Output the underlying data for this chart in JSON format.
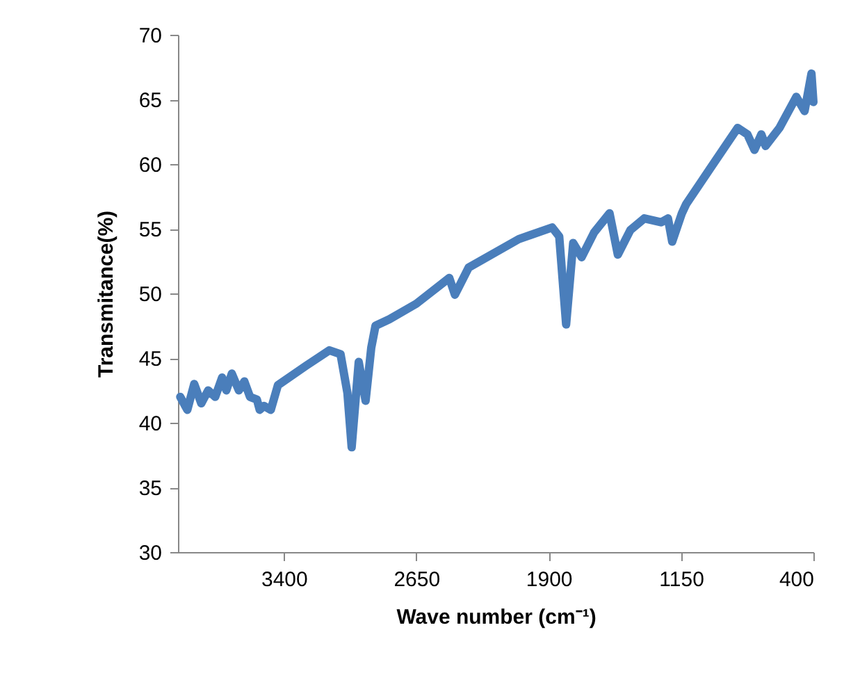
{
  "chart_data": {
    "type": "line",
    "xlabel": "Wave number (cm⁻¹)",
    "ylabel": "Transmitance(%)",
    "xlim": [
      4000,
      400
    ],
    "xticks": [
      3400,
      2650,
      1900,
      1150,
      400
    ],
    "ylim": [
      30,
      70
    ],
    "yticks": [
      30,
      35,
      40,
      45,
      50,
      55,
      60,
      65,
      70
    ],
    "grid": false,
    "marker": "none",
    "line_style": "solid",
    "series": [
      {
        "color": "#4a7ebb",
        "x": [
          3987,
          3947,
          3908,
          3868,
          3829,
          3789,
          3750,
          3726,
          3695,
          3655,
          3624,
          3592,
          3553,
          3537,
          3513,
          3474,
          3434,
          3275,
          3142,
          3079,
          3040,
          3016,
          2976,
          2937,
          2905,
          2881,
          2803,
          2650,
          2463,
          2431,
          2353,
          2069,
          1880,
          1840,
          1801,
          1761,
          1713,
          1643,
          1555,
          1508,
          1437,
          1358,
          1263,
          1224,
          1200,
          1145,
          1121,
          963,
          829,
          774,
          734,
          695,
          671,
          592,
          497,
          450,
          411,
          400
        ],
        "values": [
          42.0,
          41.0,
          43.0,
          41.5,
          42.5,
          42.0,
          43.5,
          42.5,
          43.8,
          42.5,
          43.2,
          42.0,
          41.8,
          41.0,
          41.3,
          41.0,
          42.9,
          44.4,
          45.6,
          45.3,
          42.3,
          38.1,
          44.7,
          41.7,
          45.8,
          47.5,
          48.0,
          49.2,
          51.2,
          49.9,
          52.0,
          54.2,
          55.1,
          54.4,
          47.6,
          53.9,
          52.8,
          54.7,
          56.2,
          53.0,
          54.9,
          55.8,
          55.5,
          55.8,
          54.0,
          56.2,
          56.9,
          60.1,
          62.8,
          62.3,
          61.1,
          62.3,
          61.4,
          62.8,
          65.2,
          64.1,
          67.0,
          64.8
        ]
      }
    ]
  }
}
